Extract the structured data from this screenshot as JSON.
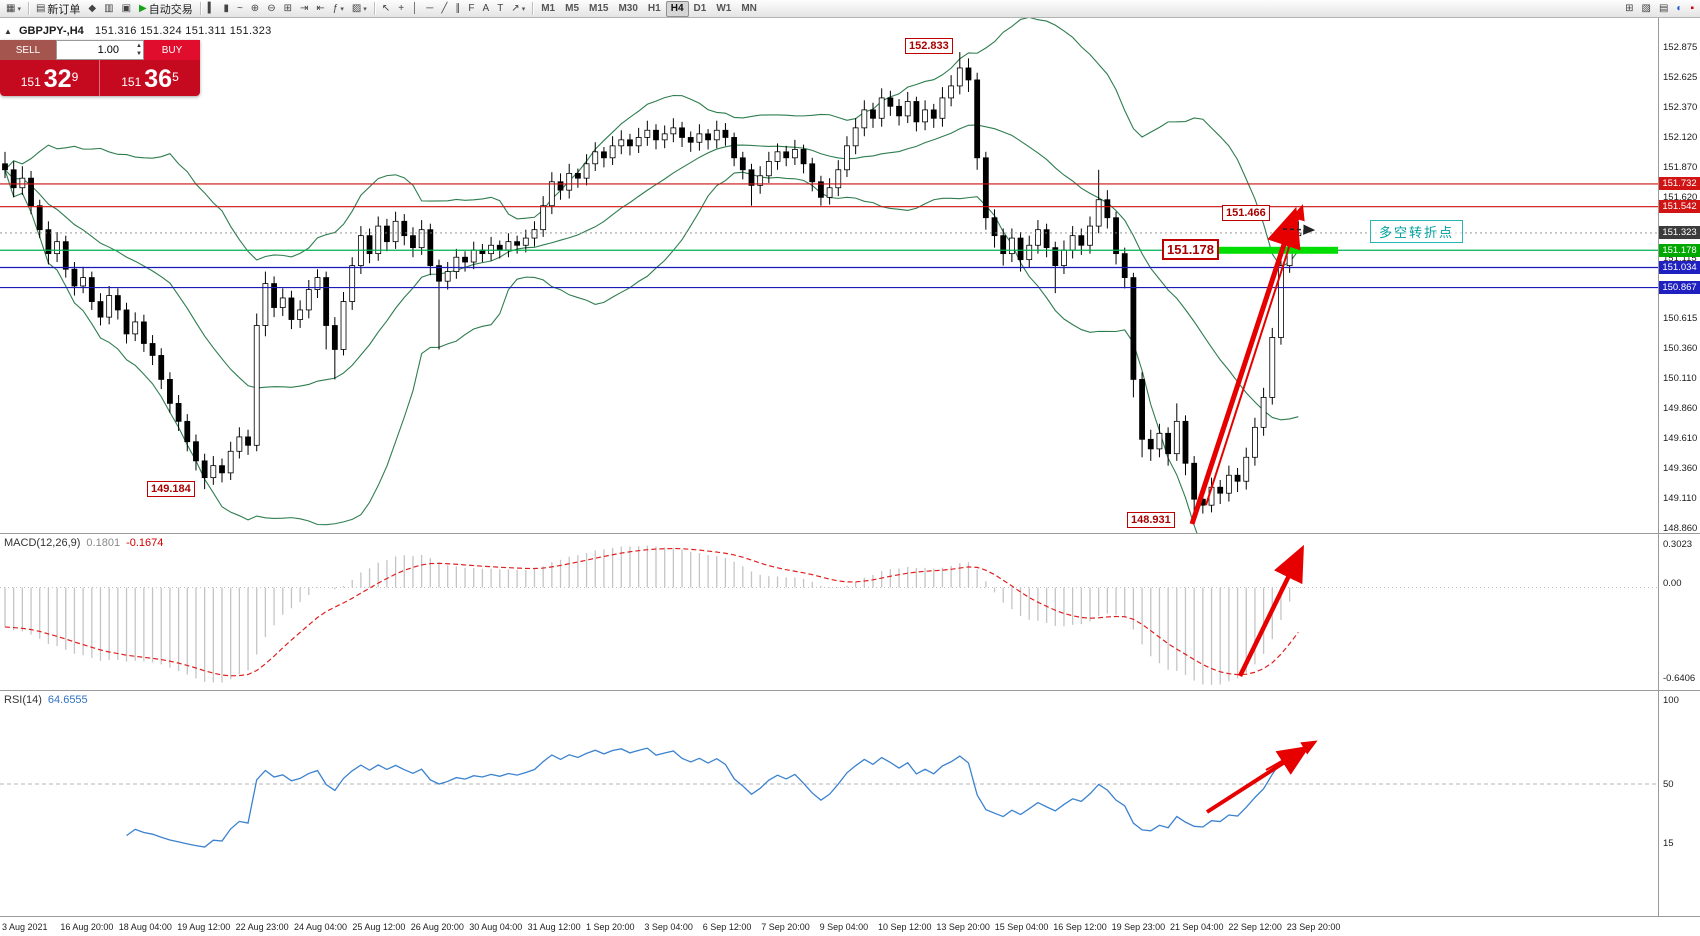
{
  "toolbar": {
    "groups": [
      {
        "name": "file-group",
        "items": [
          {
            "name": "new-chart-button",
            "glyph": "▦",
            "caret": true
          }
        ]
      },
      {
        "name": "order-group",
        "items": [
          {
            "name": "new-order-button",
            "glyph": "▤",
            "label": "新订单"
          },
          {
            "name": "alerts-icon",
            "glyph": "◆"
          },
          {
            "name": "market-watch-icon",
            "glyph": "▥"
          },
          {
            "name": "data-window-icon",
            "glyph": "▣"
          },
          {
            "name": "autotrading-button",
            "glyph": "▶",
            "glyph_color": "#17a317",
            "label": "自动交易"
          }
        ]
      },
      {
        "name": "chart-type-group",
        "items": [
          {
            "name": "bar-chart-icon",
            "glyph": "▍"
          },
          {
            "name": "candlestick-chart-icon",
            "glyph": "▮"
          },
          {
            "name": "line-chart-icon",
            "glyph": "~"
          },
          {
            "name": "zoom-in-icon",
            "glyph": "⊕"
          },
          {
            "name": "zoom-out-icon",
            "glyph": "⊖"
          },
          {
            "name": "tile-windows-icon",
            "glyph": "⊞"
          },
          {
            "name": "auto-scroll-icon",
            "glyph": "⇥"
          },
          {
            "name": "chart-shift-icon",
            "glyph": "⇤"
          },
          {
            "name": "indicators-button",
            "glyph": "ƒ",
            "caret": true
          },
          {
            "name": "templates-button",
            "glyph": "▨",
            "caret": true
          }
        ]
      },
      {
        "name": "drawing-group",
        "items": [
          {
            "name": "cursor-icon",
            "glyph": "↖"
          },
          {
            "name": "crosshair-icon",
            "glyph": "+"
          },
          {
            "name": "vertical-line-icon",
            "glyph": "│"
          },
          {
            "name": "horizontal-line-icon",
            "glyph": "─"
          },
          {
            "name": "trendline-icon",
            "glyph": "╱"
          },
          {
            "name": "equidistant-channel-icon",
            "glyph": "∥"
          },
          {
            "name": "fibonacci-icon",
            "glyph": "F"
          },
          {
            "name": "text-icon",
            "glyph": "A"
          },
          {
            "name": "text-label-icon",
            "glyph": "T"
          },
          {
            "name": "arrows-tool-icon",
            "glyph": "↗",
            "caret": true
          }
        ]
      },
      {
        "name": "timeframe-group",
        "timeframes": [
          "M1",
          "M5",
          "M15",
          "M30",
          "H1",
          "H4",
          "D1",
          "W1",
          "MN"
        ],
        "active": "H4",
        "items": []
      },
      {
        "name": "right-group",
        "align": "right",
        "items": [
          {
            "name": "window-tile-icon",
            "glyph": "⊞"
          },
          {
            "name": "window-cascade-icon",
            "glyph": "▧"
          },
          {
            "name": "chart-list-icon",
            "glyph": "▤"
          },
          {
            "name": "help-icon",
            "glyph": "◐",
            "glyph_color": "#2255cc"
          },
          {
            "name": "notification-icon",
            "glyph": "▪",
            "glyph_color": "#cc0000"
          }
        ]
      }
    ]
  },
  "chart_header": {
    "collapse_icon": "▲",
    "symbol": "GBPJPY-,H4",
    "ohlc": "151.316 151.324 151.311 151.323"
  },
  "trade_panel": {
    "sell_label": "SELL",
    "buy_label": "BUY",
    "volume": "1.00",
    "sell_price": {
      "prefix": "151",
      "main": "32",
      "sup": "9"
    },
    "buy_price": {
      "prefix": "151",
      "main": "36",
      "sup": "5"
    }
  },
  "annotations": {
    "high_label": "152.833",
    "swing_label": "151.466",
    "pivot_label": "151.178",
    "low_left_label": "149.184",
    "low_right_label": "148.931",
    "note_text": "多空转折点"
  },
  "price_scale": {
    "ticks": [
      "152.875",
      "152.625",
      "152.370",
      "152.120",
      "151.870",
      "151.620",
      "151.115",
      "150.615",
      "150.360",
      "150.110",
      "149.860",
      "149.610",
      "149.360",
      "149.110",
      "148.860"
    ],
    "badges": [
      {
        "text": "151.732",
        "price": 151.732,
        "color": "#d01414"
      },
      {
        "text": "151.542",
        "price": 151.542,
        "color": "#d01414"
      },
      {
        "text": "151.323",
        "price": 151.323,
        "color": "#3c3c3c"
      },
      {
        "text": "151.178",
        "price": 151.178,
        "color": "#00a800"
      },
      {
        "text": "151.034",
        "price": 151.034,
        "color": "#2020c0"
      },
      {
        "text": "150.867",
        "price": 150.867,
        "color": "#2020c0"
      }
    ]
  },
  "macd": {
    "name": "MACD(12,26,9)",
    "main_value": "0.1801",
    "signal_value": "-0.1674",
    "scale": [
      "0.3023",
      "0.00",
      "-0.6406"
    ]
  },
  "rsi": {
    "name": "RSI(14)",
    "value": "64.6555",
    "scale": [
      "100",
      "50",
      "15"
    ]
  },
  "time_axis": {
    "labels": [
      "3 Aug 2021",
      "16 Aug 20:00",
      "18 Aug 04:00",
      "19 Aug 12:00",
      "22 Aug 23:00",
      "24 Aug 04:00",
      "25 Aug 12:00",
      "26 Aug 20:00",
      "30 Aug 04:00",
      "31 Aug 12:00",
      "1 Sep 20:00",
      "3 Sep 04:00",
      "6 Sep 12:00",
      "7 Sep 20:00",
      "9 Sep 04:00",
      "10 Sep 12:00",
      "13 Sep 20:00",
      "15 Sep 04:00",
      "16 Sep 12:00",
      "19 Sep 23:00",
      "21 Sep 04:00",
      "22 Sep 12:00",
      "23 Sep 20:00"
    ]
  },
  "chart_data": {
    "type": "candlestick",
    "symbol": "GBPJPY",
    "timeframe": "H4",
    "ohlc_display": {
      "open": "151.316",
      "high": "151.324",
      "low": "151.311",
      "close": "151.323"
    },
    "y_axis": {
      "visible_min": 148.86,
      "visible_max": 152.875
    },
    "key_prices": {
      "peak": 152.833,
      "swing_high": 151.466,
      "pivot": 151.178,
      "left_low": 149.184,
      "right_low": 148.931,
      "bid": 151.323
    },
    "hlines": [
      {
        "price": 151.732,
        "color": "#cc1111"
      },
      {
        "price": 151.542,
        "color": "#cc1111"
      },
      {
        "price": 151.178,
        "color": "#00b050"
      },
      {
        "price": 151.034,
        "color": "#1a1ab8"
      },
      {
        "price": 150.867,
        "color": "#1a1ab8"
      }
    ],
    "indicators": {
      "bollinger": {
        "period": 20,
        "deviation": 2
      },
      "macd": {
        "fast": 12,
        "slow": 26,
        "signal": 9,
        "main": 0.1801,
        "signal_value": -0.1674
      },
      "rsi": {
        "period": 14,
        "value": 64.6555
      }
    },
    "candles": [
      [
        151.9,
        152.0,
        151.78,
        151.85
      ],
      [
        151.85,
        151.92,
        151.62,
        151.7
      ],
      [
        151.7,
        151.88,
        151.64,
        151.78
      ],
      [
        151.78,
        151.84,
        151.48,
        151.55
      ],
      [
        151.55,
        151.6,
        151.28,
        151.35
      ],
      [
        151.35,
        151.42,
        151.06,
        151.15
      ],
      [
        151.15,
        151.33,
        151.08,
        151.25
      ],
      [
        151.25,
        151.3,
        150.95,
        151.02
      ],
      [
        151.02,
        151.08,
        150.8,
        150.88
      ],
      [
        150.88,
        151.04,
        150.82,
        150.95
      ],
      [
        150.95,
        151.0,
        150.68,
        150.75
      ],
      [
        150.75,
        150.82,
        150.55,
        150.62
      ],
      [
        150.62,
        150.88,
        150.56,
        150.8
      ],
      [
        150.8,
        150.86,
        150.6,
        150.68
      ],
      [
        150.68,
        150.74,
        150.4,
        150.48
      ],
      [
        150.48,
        150.66,
        150.42,
        150.58
      ],
      [
        150.58,
        150.64,
        150.33,
        150.4
      ],
      [
        150.4,
        150.47,
        150.22,
        150.3
      ],
      [
        150.3,
        150.36,
        150.02,
        150.1
      ],
      [
        150.1,
        150.16,
        149.82,
        149.9
      ],
      [
        149.9,
        149.97,
        149.67,
        149.75
      ],
      [
        149.75,
        149.81,
        149.5,
        149.58
      ],
      [
        149.58,
        149.64,
        149.34,
        149.42
      ],
      [
        149.42,
        149.48,
        149.184,
        149.28
      ],
      [
        149.28,
        149.46,
        149.22,
        149.38
      ],
      [
        149.38,
        149.44,
        149.24,
        149.32
      ],
      [
        149.32,
        149.58,
        149.26,
        149.5
      ],
      [
        149.5,
        149.7,
        149.44,
        149.62
      ],
      [
        149.62,
        149.68,
        149.47,
        149.55
      ],
      [
        149.55,
        150.65,
        149.5,
        150.55
      ],
      [
        150.55,
        151.0,
        150.46,
        150.9
      ],
      [
        150.9,
        150.96,
        150.62,
        150.7
      ],
      [
        150.7,
        150.86,
        150.63,
        150.78
      ],
      [
        150.78,
        150.84,
        150.52,
        150.6
      ],
      [
        150.6,
        150.76,
        150.53,
        150.68
      ],
      [
        150.68,
        150.93,
        150.61,
        150.85
      ],
      [
        150.85,
        151.02,
        150.78,
        150.95
      ],
      [
        150.95,
        151.0,
        150.35,
        150.55
      ],
      [
        150.55,
        150.62,
        150.1,
        150.35
      ],
      [
        150.35,
        150.83,
        150.3,
        150.75
      ],
      [
        150.75,
        151.12,
        150.68,
        151.05
      ],
      [
        151.05,
        151.38,
        150.98,
        151.3
      ],
      [
        151.3,
        151.36,
        151.07,
        151.15
      ],
      [
        151.15,
        151.46,
        151.09,
        151.38
      ],
      [
        151.38,
        151.44,
        151.17,
        151.25
      ],
      [
        151.25,
        151.5,
        151.19,
        151.42
      ],
      [
        151.42,
        151.48,
        151.22,
        151.3
      ],
      [
        151.3,
        151.37,
        151.12,
        151.2
      ],
      [
        151.2,
        151.43,
        151.14,
        151.35
      ],
      [
        151.35,
        151.4,
        150.97,
        151.05
      ],
      [
        151.05,
        151.1,
        150.35,
        150.92
      ],
      [
        150.92,
        151.08,
        150.85,
        151.0
      ],
      [
        151.0,
        151.19,
        150.94,
        151.12
      ],
      [
        151.12,
        151.17,
        151.0,
        151.08
      ],
      [
        151.08,
        151.25,
        151.02,
        151.18
      ],
      [
        151.18,
        151.23,
        151.08,
        151.15
      ],
      [
        151.15,
        151.29,
        151.09,
        151.22
      ],
      [
        151.22,
        151.26,
        151.11,
        151.18
      ],
      [
        151.18,
        151.32,
        151.12,
        151.25
      ],
      [
        151.25,
        151.3,
        151.15,
        151.22
      ],
      [
        151.22,
        151.35,
        151.16,
        151.28
      ],
      [
        151.28,
        151.42,
        151.21,
        151.35
      ],
      [
        151.35,
        151.63,
        151.29,
        151.55
      ],
      [
        151.55,
        151.83,
        151.48,
        151.75
      ],
      [
        151.75,
        151.82,
        151.6,
        151.68
      ],
      [
        151.68,
        151.9,
        151.61,
        151.82
      ],
      [
        151.82,
        151.86,
        151.7,
        151.78
      ],
      [
        151.78,
        151.98,
        151.72,
        151.9
      ],
      [
        151.9,
        152.08,
        151.84,
        152.0
      ],
      [
        152.0,
        152.04,
        151.87,
        151.95
      ],
      [
        151.95,
        152.13,
        151.89,
        152.05
      ],
      [
        152.05,
        152.18,
        151.98,
        152.1
      ],
      [
        152.1,
        152.15,
        151.97,
        152.05
      ],
      [
        152.05,
        152.2,
        151.99,
        152.12
      ],
      [
        152.12,
        152.26,
        152.05,
        152.18
      ],
      [
        152.18,
        152.23,
        152.02,
        152.1
      ],
      [
        152.1,
        152.22,
        152.03,
        152.15
      ],
      [
        152.15,
        152.28,
        152.08,
        152.2
      ],
      [
        152.2,
        152.25,
        152.04,
        152.12
      ],
      [
        152.12,
        152.17,
        152.0,
        152.08
      ],
      [
        152.08,
        152.23,
        152.01,
        152.15
      ],
      [
        152.15,
        152.19,
        152.02,
        152.1
      ],
      [
        152.1,
        152.26,
        152.03,
        152.18
      ],
      [
        152.18,
        152.24,
        152.05,
        152.12
      ],
      [
        152.12,
        152.16,
        151.88,
        151.95
      ],
      [
        151.95,
        152.0,
        151.77,
        151.85
      ],
      [
        151.85,
        151.9,
        151.55,
        151.72
      ],
      [
        151.72,
        151.88,
        151.65,
        151.8
      ],
      [
        151.8,
        152.0,
        151.74,
        151.92
      ],
      [
        151.92,
        152.07,
        151.85,
        152.0
      ],
      [
        152.0,
        152.05,
        151.88,
        151.95
      ],
      [
        151.95,
        152.1,
        151.89,
        152.02
      ],
      [
        152.02,
        152.06,
        151.82,
        151.9
      ],
      [
        151.9,
        151.95,
        151.67,
        151.75
      ],
      [
        151.75,
        151.8,
        151.55,
        151.62
      ],
      [
        151.62,
        151.78,
        151.56,
        151.7
      ],
      [
        151.7,
        151.93,
        151.63,
        151.85
      ],
      [
        151.85,
        152.13,
        151.79,
        152.05
      ],
      [
        152.05,
        152.28,
        151.98,
        152.2
      ],
      [
        152.2,
        152.43,
        152.13,
        152.35
      ],
      [
        152.35,
        152.41,
        152.2,
        152.28
      ],
      [
        152.28,
        152.53,
        152.21,
        152.45
      ],
      [
        152.45,
        152.51,
        152.3,
        152.38
      ],
      [
        152.38,
        152.44,
        152.22,
        152.3
      ],
      [
        152.3,
        152.5,
        152.24,
        152.42
      ],
      [
        152.42,
        152.46,
        152.17,
        152.25
      ],
      [
        152.25,
        152.43,
        152.18,
        152.35
      ],
      [
        152.35,
        152.4,
        152.2,
        152.28
      ],
      [
        152.28,
        152.54,
        152.21,
        152.45
      ],
      [
        152.45,
        152.64,
        152.38,
        152.55
      ],
      [
        152.55,
        152.833,
        152.48,
        152.7
      ],
      [
        152.7,
        152.78,
        152.5,
        152.6
      ],
      [
        152.6,
        152.66,
        151.85,
        151.95
      ],
      [
        151.95,
        152.0,
        151.35,
        151.45
      ],
      [
        151.45,
        151.52,
        151.2,
        151.3
      ],
      [
        151.3,
        151.36,
        151.05,
        151.15
      ],
      [
        151.15,
        151.36,
        151.08,
        151.28
      ],
      [
        151.28,
        151.33,
        151.0,
        151.1
      ],
      [
        151.1,
        151.3,
        151.03,
        151.22
      ],
      [
        151.22,
        151.43,
        151.15,
        151.35
      ],
      [
        151.35,
        151.4,
        151.12,
        151.2
      ],
      [
        151.2,
        151.25,
        150.82,
        151.05
      ],
      [
        151.05,
        151.26,
        150.98,
        151.18
      ],
      [
        151.18,
        151.38,
        151.11,
        151.3
      ],
      [
        151.3,
        151.36,
        151.14,
        151.22
      ],
      [
        151.22,
        151.46,
        151.15,
        151.38
      ],
      [
        151.38,
        151.85,
        151.32,
        151.6
      ],
      [
        151.6,
        151.68,
        151.36,
        151.45
      ],
      [
        151.45,
        151.5,
        151.06,
        151.15
      ],
      [
        151.15,
        151.2,
        150.86,
        150.95
      ],
      [
        150.95,
        150.99,
        149.95,
        150.1
      ],
      [
        150.1,
        150.16,
        149.45,
        149.6
      ],
      [
        149.6,
        149.68,
        149.42,
        149.52
      ],
      [
        149.52,
        149.73,
        149.45,
        149.65
      ],
      [
        149.65,
        149.7,
        149.38,
        149.48
      ],
      [
        149.48,
        149.9,
        149.42,
        149.75
      ],
      [
        149.75,
        149.8,
        149.3,
        149.4
      ],
      [
        149.4,
        149.46,
        148.931,
        149.1
      ],
      [
        149.1,
        149.18,
        148.98,
        149.05
      ],
      [
        149.05,
        149.28,
        148.99,
        149.2
      ],
      [
        149.2,
        149.26,
        149.06,
        149.15
      ],
      [
        149.15,
        149.38,
        149.08,
        149.3
      ],
      [
        149.3,
        149.36,
        149.16,
        149.25
      ],
      [
        149.25,
        149.53,
        149.18,
        149.45
      ],
      [
        149.45,
        149.78,
        149.38,
        149.7
      ],
      [
        149.7,
        150.03,
        149.63,
        149.95
      ],
      [
        149.95,
        150.53,
        149.89,
        150.45
      ],
      [
        150.45,
        151.13,
        150.39,
        151.05
      ],
      [
        151.05,
        151.466,
        150.99,
        151.3
      ],
      [
        151.3,
        151.42,
        151.24,
        151.323
      ]
    ]
  }
}
